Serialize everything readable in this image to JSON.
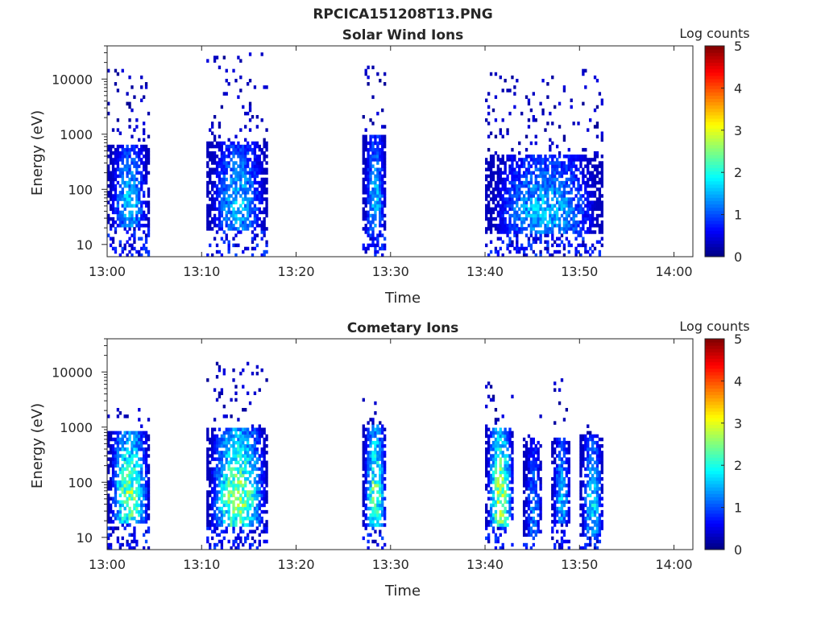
{
  "figure_title": "RPCICA151208T13.PNG",
  "chart_data": [
    {
      "type": "heatmap",
      "title": "Solar Wind Ions",
      "xlabel": "Time",
      "ylabel": "Energy (eV)",
      "x_ticks": [
        "13:00",
        "13:10",
        "13:20",
        "13:30",
        "13:40",
        "13:50",
        "14:00"
      ],
      "x_range": [
        "13:00",
        "14:02"
      ],
      "y_scale": "log",
      "y_ticks": [
        10,
        100,
        1000,
        10000
      ],
      "y_range": [
        6,
        40000
      ],
      "colorbar": {
        "label": "Log counts",
        "range": [
          0,
          5
        ],
        "ticks": [
          0,
          1,
          2,
          3,
          4,
          5
        ],
        "colormap": "jet"
      },
      "bursts": [
        {
          "start": "13:00",
          "end": "13:04.5",
          "sparse_max_eV": 15000,
          "core_low_eV": 20,
          "core_high_eV": 600,
          "peak_logcounts": 2.0
        },
        {
          "start": "13:10.5",
          "end": "13:17",
          "sparse_max_eV": 30000,
          "core_low_eV": 18,
          "core_high_eV": 700,
          "peak_logcounts": 2.0
        },
        {
          "start": "13:27",
          "end": "13:29.5",
          "sparse_max_eV": 16000,
          "core_low_eV": 18,
          "core_high_eV": 900,
          "peak_logcounts": 2.0
        },
        {
          "start": "13:40",
          "end": "13:52.5",
          "sparse_max_eV": 15000,
          "core_low_eV": 15,
          "core_high_eV": 400,
          "peak_logcounts": 2.0
        }
      ]
    },
    {
      "type": "heatmap",
      "title": "Cometary Ions",
      "xlabel": "Time",
      "ylabel": "Energy (eV)",
      "x_ticks": [
        "13:00",
        "13:10",
        "13:20",
        "13:30",
        "13:40",
        "13:50",
        "14:00"
      ],
      "x_range": [
        "13:00",
        "14:02"
      ],
      "y_scale": "log",
      "y_ticks": [
        10,
        100,
        1000,
        10000
      ],
      "y_range": [
        6,
        40000
      ],
      "colorbar": {
        "label": "Log counts",
        "range": [
          0,
          5
        ],
        "ticks": [
          0,
          1,
          2,
          3,
          4,
          5
        ],
        "colormap": "jet"
      },
      "bursts": [
        {
          "start": "13:00",
          "end": "13:04.5",
          "sparse_max_eV": 2500,
          "core_low_eV": 18,
          "core_high_eV": 800,
          "peak_logcounts": 3.2
        },
        {
          "start": "13:10.5",
          "end": "13:17",
          "sparse_max_eV": 15000,
          "core_low_eV": 15,
          "core_high_eV": 900,
          "peak_logcounts": 3.3
        },
        {
          "start": "13:27",
          "end": "13:29.5",
          "sparse_max_eV": 3000,
          "core_low_eV": 15,
          "core_high_eV": 1100,
          "peak_logcounts": 3.0
        },
        {
          "start": "13:40",
          "end": "13:43",
          "sparse_max_eV": 9000,
          "core_low_eV": 15,
          "core_high_eV": 900,
          "peak_logcounts": 3.5
        },
        {
          "start": "13:44",
          "end": "13:46",
          "sparse_max_eV": 1500,
          "core_low_eV": 10,
          "core_high_eV": 600,
          "peak_logcounts": 1.6
        },
        {
          "start": "13:47",
          "end": "13:49",
          "sparse_max_eV": 9000,
          "core_low_eV": 18,
          "core_high_eV": 600,
          "peak_logcounts": 2.0
        },
        {
          "start": "13:50",
          "end": "13:52.5",
          "sparse_max_eV": 1400,
          "core_low_eV": 10,
          "core_high_eV": 700,
          "peak_logcounts": 2.2
        }
      ]
    }
  ]
}
